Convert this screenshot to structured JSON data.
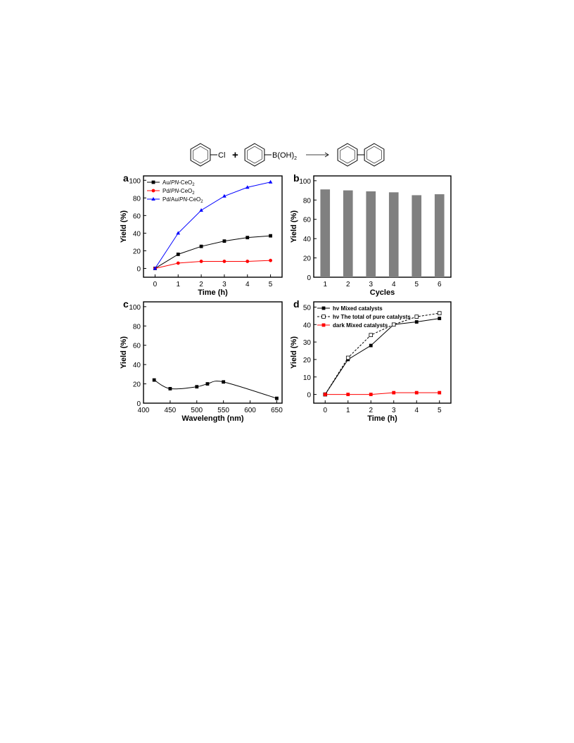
{
  "scheme": {
    "reactant1_label": "Cl",
    "plus": "+",
    "reactant2_label": "B(OH)",
    "reactant2_sub": "2"
  },
  "chart_data": [
    {
      "panel": "a",
      "type": "line",
      "xlabel": "Time (h)",
      "ylabel": "Yield (%)",
      "xlim": [
        -0.5,
        5.5
      ],
      "ylim": [
        -10,
        105
      ],
      "xticks": [
        0,
        1,
        2,
        3,
        4,
        5
      ],
      "yticks": [
        0,
        20,
        40,
        60,
        80,
        100
      ],
      "legend_position": "top-left",
      "series": [
        {
          "name": "Au/PN-CeO2",
          "legend": {
            "a": "Au/",
            "i": "PN",
            "b": "-CeO",
            "s": "2"
          },
          "color": "#000000",
          "marker": "square",
          "dash": false,
          "x": [
            0,
            1,
            2,
            3,
            4,
            5
          ],
          "y": [
            0,
            16,
            25,
            31,
            35,
            37
          ]
        },
        {
          "name": "Pd/PN-CeO2",
          "legend": {
            "a": "Pd/",
            "i": "PN",
            "b": "-CeO",
            "s": "2"
          },
          "color": "#ff0000",
          "marker": "circle",
          "dash": false,
          "x": [
            0,
            1,
            2,
            3,
            4,
            5
          ],
          "y": [
            0,
            6,
            8,
            8,
            8,
            9
          ]
        },
        {
          "name": "Pd/Au/PN-CeO2",
          "legend": {
            "a": "Pd/Au/",
            "i": "PN",
            "b": "-CeO",
            "s": "2"
          },
          "color": "#0000ff",
          "marker": "triangle",
          "dash": false,
          "x": [
            0,
            1,
            2,
            3,
            4,
            5
          ],
          "y": [
            0,
            40,
            66,
            82,
            92,
            98
          ]
        }
      ]
    },
    {
      "panel": "b",
      "type": "bar",
      "xlabel": "Cycles",
      "ylabel": "Yield (%)",
      "categories": [
        "1",
        "2",
        "3",
        "4",
        "5",
        "6"
      ],
      "values": [
        91,
        90,
        89,
        88,
        85,
        86
      ],
      "bar_color": "#808080",
      "ylim": [
        0,
        105
      ],
      "yticks": [
        0,
        20,
        40,
        60,
        80,
        100
      ]
    },
    {
      "panel": "c",
      "type": "line",
      "xlabel": "Wavelength (nm)",
      "ylabel": "Yield (%)",
      "xlim": [
        400,
        660
      ],
      "ylim": [
        0,
        105
      ],
      "xticks": [
        400,
        450,
        500,
        550,
        600,
        650
      ],
      "yticks": [
        0,
        20,
        40,
        60,
        80,
        100
      ],
      "series": [
        {
          "color": "#000000",
          "marker": "square",
          "smooth": true,
          "x": [
            420,
            450,
            500,
            520,
            550,
            650
          ],
          "y": [
            24,
            15,
            17,
            20,
            22,
            5
          ]
        }
      ]
    },
    {
      "panel": "d",
      "type": "line",
      "xlabel": "Time (h)",
      "ylabel": "Yield (%)",
      "xlim": [
        -0.5,
        5.5
      ],
      "ylim": [
        -5,
        53
      ],
      "xticks": [
        0,
        1,
        2,
        3,
        4,
        5
      ],
      "yticks": [
        0,
        10,
        20,
        30,
        40,
        50
      ],
      "legend_position": "top-left",
      "series": [
        {
          "name": "hν  Mixed catalysts",
          "color": "#000000",
          "marker": "square",
          "dash": false,
          "x": [
            0,
            1,
            2,
            3,
            4,
            5
          ],
          "y": [
            0,
            20,
            28,
            40,
            41.5,
            43.5
          ]
        },
        {
          "name": "hν  The total of pure catalysts",
          "color": "#000000",
          "marker": "open-square",
          "dash": true,
          "x": [
            0,
            1,
            2,
            3,
            4,
            5
          ],
          "y": [
            0,
            21,
            34,
            40,
            44.5,
            46.5
          ]
        },
        {
          "name": "dark  Mixed catalysts",
          "color": "#ff0000",
          "marker": "square",
          "dash": false,
          "x": [
            0,
            1,
            2,
            3,
            4,
            5
          ],
          "y": [
            0,
            0,
            0,
            1,
            1,
            1
          ]
        }
      ]
    }
  ]
}
